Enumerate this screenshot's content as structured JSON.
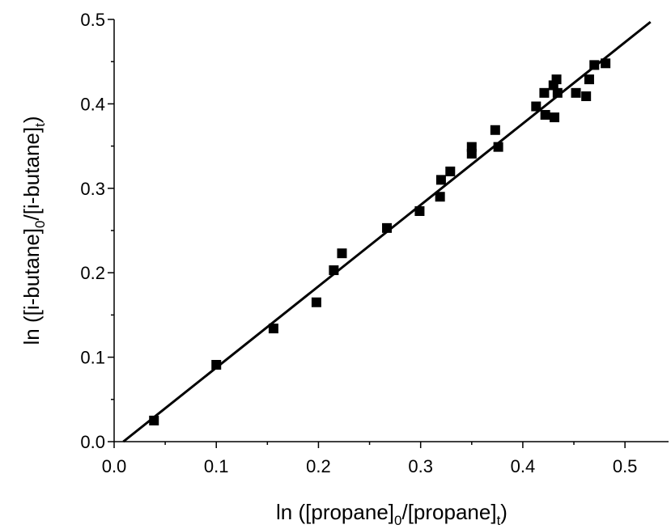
{
  "chart_data": {
    "type": "scatter",
    "xlabel": {
      "prefix": "ln ([propane]",
      "sub1": "0",
      "mid": "/[propane]",
      "sub2": "t",
      "suffix": ")"
    },
    "ylabel": {
      "prefix": "ln ([i-butane]",
      "sub1": "0",
      "mid": "/[i-butane]",
      "sub2": "t",
      "suffix": ")"
    },
    "xlim": [
      0.0,
      0.53
    ],
    "ylim": [
      0.0,
      0.5
    ],
    "x_ticks": [
      "0.0",
      "0.1",
      "0.2",
      "0.3",
      "0.4",
      "0.5"
    ],
    "y_ticks": [
      "0.0",
      "0.1",
      "0.2",
      "0.3",
      "0.4",
      "0.5"
    ],
    "x_tick_values": [
      0.0,
      0.1,
      0.2,
      0.3,
      0.4,
      0.5
    ],
    "y_tick_values": [
      0.0,
      0.1,
      0.2,
      0.3,
      0.4,
      0.5
    ],
    "grid": false,
    "marker": "square",
    "color": "#000000",
    "points": [
      {
        "x": 0.039,
        "y": 0.025
      },
      {
        "x": 0.1,
        "y": 0.091
      },
      {
        "x": 0.156,
        "y": 0.134
      },
      {
        "x": 0.198,
        "y": 0.165
      },
      {
        "x": 0.215,
        "y": 0.203
      },
      {
        "x": 0.223,
        "y": 0.223
      },
      {
        "x": 0.267,
        "y": 0.253
      },
      {
        "x": 0.299,
        "y": 0.273
      },
      {
        "x": 0.319,
        "y": 0.29
      },
      {
        "x": 0.32,
        "y": 0.31
      },
      {
        "x": 0.329,
        "y": 0.32
      },
      {
        "x": 0.35,
        "y": 0.341
      },
      {
        "x": 0.35,
        "y": 0.349
      },
      {
        "x": 0.373,
        "y": 0.369
      },
      {
        "x": 0.376,
        "y": 0.349
      },
      {
        "x": 0.413,
        "y": 0.397
      },
      {
        "x": 0.421,
        "y": 0.413
      },
      {
        "x": 0.422,
        "y": 0.387
      },
      {
        "x": 0.43,
        "y": 0.422
      },
      {
        "x": 0.431,
        "y": 0.384
      },
      {
        "x": 0.433,
        "y": 0.429
      },
      {
        "x": 0.434,
        "y": 0.413
      },
      {
        "x": 0.452,
        "y": 0.413
      },
      {
        "x": 0.462,
        "y": 0.409
      },
      {
        "x": 0.465,
        "y": 0.429
      },
      {
        "x": 0.47,
        "y": 0.446
      },
      {
        "x": 0.481,
        "y": 0.448
      }
    ],
    "fit_line": {
      "x": [
        0.009,
        0.525
      ],
      "y": [
        0.0,
        0.497
      ]
    }
  }
}
